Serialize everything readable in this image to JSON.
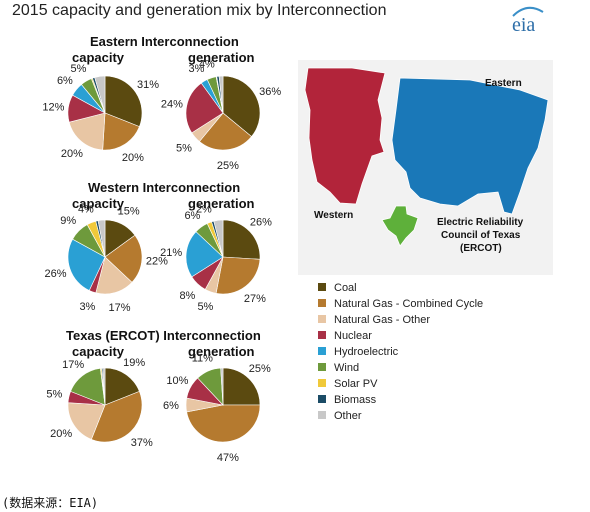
{
  "title": "2015 capacity and generation mix by Interconnection",
  "logo_text": "eia",
  "source": "(数据来源：EIA)",
  "colors": {
    "Coal": "#5b4a10",
    "Natural Gas - Combined Cycle": "#b57a2f",
    "Natural Gas - Other": "#e8c6a4",
    "Nuclear": "#a83046",
    "Hydroelectric": "#2aa0d4",
    "Wind": "#6e9a3c",
    "Solar PV": "#f0c93a",
    "Biomass": "#1b4c66",
    "Other": "#c8c8c8",
    "map_western": "#b2243a",
    "map_eastern": "#1a78b8",
    "map_ercot": "#5eb03a"
  },
  "legend": [
    "Coal",
    "Natural Gas - Combined Cycle",
    "Natural Gas - Other",
    "Nuclear",
    "Hydroelectric",
    "Wind",
    "Solar PV",
    "Biomass",
    "Other"
  ],
  "map_labels": {
    "eastern": "Eastern",
    "western": "Western",
    "ercot": [
      "Electric Reliability",
      "Council of Texas",
      "(ERCOT)"
    ]
  },
  "chart_data": [
    {
      "type": "pie",
      "title": "Eastern Interconnection",
      "subtitle": "capacity",
      "series": [
        {
          "name": "Coal",
          "value": 31,
          "label": "31%"
        },
        {
          "name": "Natural Gas - Combined Cycle",
          "value": 20,
          "label": "20%"
        },
        {
          "name": "Natural Gas - Other",
          "value": 20,
          "label": "20%"
        },
        {
          "name": "Nuclear",
          "value": 12,
          "label": "12%"
        },
        {
          "name": "Hydroelectric",
          "value": 6,
          "label": "6%"
        },
        {
          "name": "Wind",
          "value": 5,
          "label": "5%"
        },
        {
          "name": "Solar PV",
          "value": 0.5,
          "label": ""
        },
        {
          "name": "Biomass",
          "value": 1,
          "label": ""
        },
        {
          "name": "Other",
          "value": 4.5,
          "label": ""
        }
      ]
    },
    {
      "type": "pie",
      "title": "Eastern Interconnection",
      "subtitle": "generation",
      "series": [
        {
          "name": "Coal",
          "value": 36,
          "label": "36%"
        },
        {
          "name": "Natural Gas - Combined Cycle",
          "value": 25,
          "label": "25%"
        },
        {
          "name": "Natural Gas - Other",
          "value": 5,
          "label": "5%"
        },
        {
          "name": "Nuclear",
          "value": 24,
          "label": "24%"
        },
        {
          "name": "Hydroelectric",
          "value": 3,
          "label": "3%"
        },
        {
          "name": "Wind",
          "value": 4,
          "label": "4%"
        },
        {
          "name": "Solar PV",
          "value": 0.3,
          "label": ""
        },
        {
          "name": "Biomass",
          "value": 1,
          "label": ""
        },
        {
          "name": "Other",
          "value": 1.7,
          "label": ""
        }
      ]
    },
    {
      "type": "pie",
      "title": "Western Interconnection",
      "subtitle": "capacity",
      "series": [
        {
          "name": "Coal",
          "value": 15,
          "label": "15%"
        },
        {
          "name": "Natural Gas - Combined Cycle",
          "value": 22,
          "label": "22%"
        },
        {
          "name": "Natural Gas - Other",
          "value": 17,
          "label": "17%"
        },
        {
          "name": "Nuclear",
          "value": 3,
          "label": "3%"
        },
        {
          "name": "Hydroelectric",
          "value": 26,
          "label": "26%"
        },
        {
          "name": "Wind",
          "value": 9,
          "label": "9%"
        },
        {
          "name": "Solar PV",
          "value": 4,
          "label": "4%"
        },
        {
          "name": "Biomass",
          "value": 1,
          "label": ""
        },
        {
          "name": "Other",
          "value": 3,
          "label": ""
        }
      ]
    },
    {
      "type": "pie",
      "title": "Western Interconnection",
      "subtitle": "generation",
      "series": [
        {
          "name": "Coal",
          "value": 26,
          "label": "26%"
        },
        {
          "name": "Natural Gas - Combined Cycle",
          "value": 27,
          "label": "27%"
        },
        {
          "name": "Natural Gas - Other",
          "value": 5,
          "label": "5%"
        },
        {
          "name": "Nuclear",
          "value": 8,
          "label": "8%"
        },
        {
          "name": "Hydroelectric",
          "value": 21,
          "label": "21%"
        },
        {
          "name": "Wind",
          "value": 6,
          "label": "6%"
        },
        {
          "name": "Solar PV",
          "value": 2,
          "label": "2%"
        },
        {
          "name": "Biomass",
          "value": 1,
          "label": ""
        },
        {
          "name": "Other",
          "value": 4,
          "label": ""
        }
      ]
    },
    {
      "type": "pie",
      "title": "Texas (ERCOT) Interconnection",
      "subtitle": "capacity",
      "series": [
        {
          "name": "Coal",
          "value": 19,
          "label": "19%"
        },
        {
          "name": "Natural Gas - Combined Cycle",
          "value": 37,
          "label": "37%"
        },
        {
          "name": "Natural Gas - Other",
          "value": 20,
          "label": "20%"
        },
        {
          "name": "Nuclear",
          "value": 5,
          "label": "5%"
        },
        {
          "name": "Wind",
          "value": 17,
          "label": "17%"
        },
        {
          "name": "Solar PV",
          "value": 0.5,
          "label": ""
        },
        {
          "name": "Biomass",
          "value": 0.5,
          "label": ""
        },
        {
          "name": "Other",
          "value": 1,
          "label": ""
        }
      ]
    },
    {
      "type": "pie",
      "title": "Texas (ERCOT) Interconnection",
      "subtitle": "generation",
      "series": [
        {
          "name": "Coal",
          "value": 25,
          "label": "25%"
        },
        {
          "name": "Natural Gas - Combined Cycle",
          "value": 47,
          "label": "47%"
        },
        {
          "name": "Natural Gas - Other",
          "value": 6,
          "label": "6%"
        },
        {
          "name": "Nuclear",
          "value": 10,
          "label": "10%"
        },
        {
          "name": "Wind",
          "value": 11,
          "label": "11%"
        },
        {
          "name": "Other",
          "value": 1,
          "label": ""
        }
      ]
    }
  ]
}
